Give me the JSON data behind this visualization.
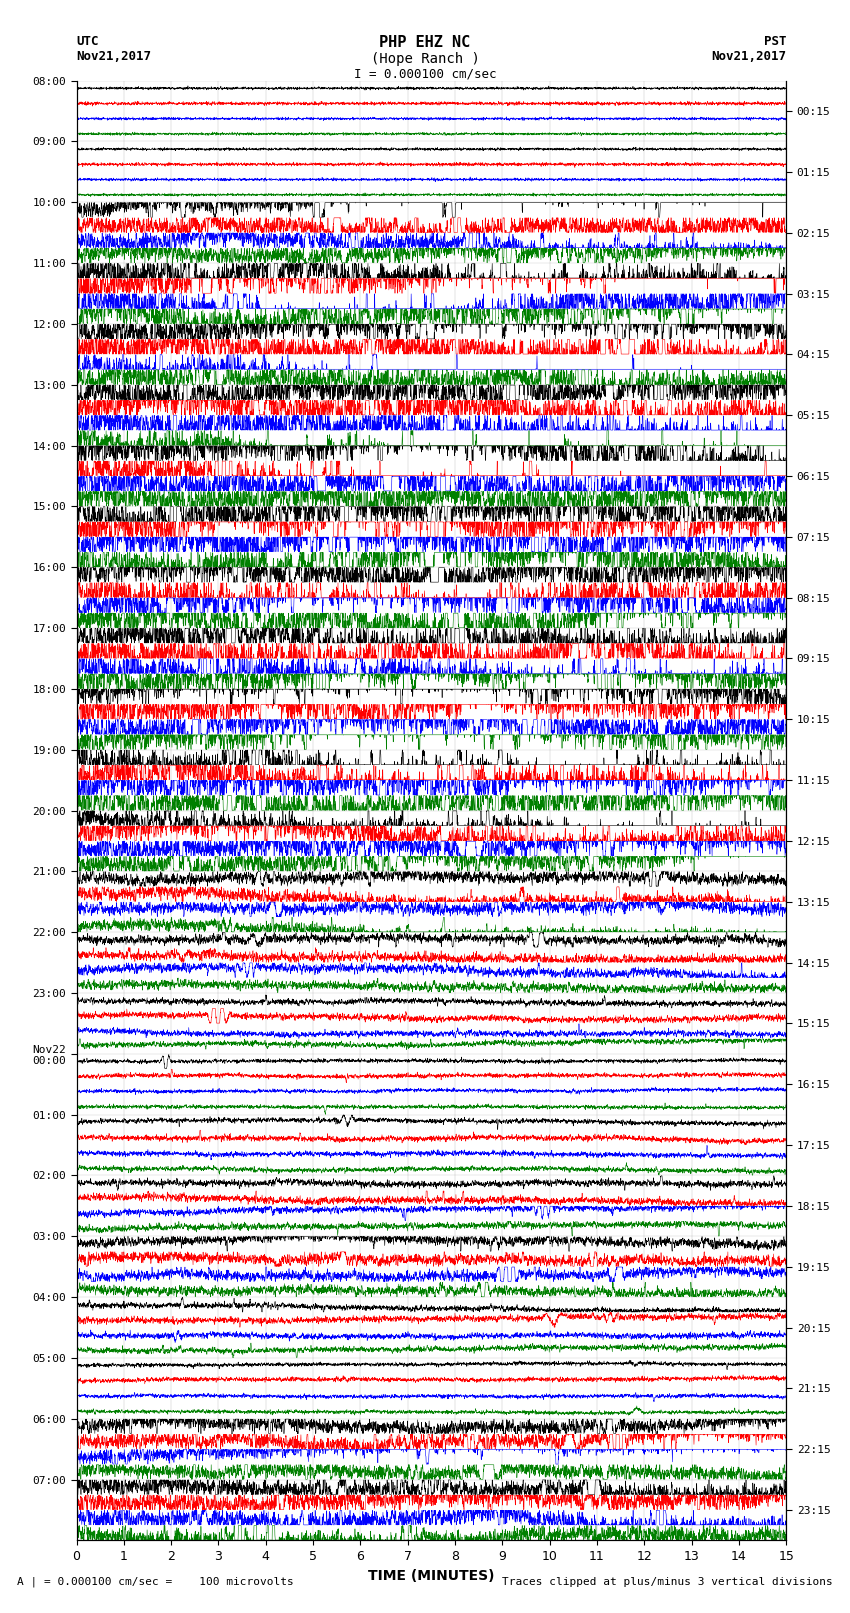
{
  "title_line1": "PHP EHZ NC",
  "title_line2": "(Hope Ranch )",
  "title_line3": "I = 0.000100 cm/sec",
  "utc_label_top": "UTC",
  "utc_label_date": "Nov21,2017",
  "pst_label_top": "PST",
  "pst_label_date": "Nov21,2017",
  "xlabel": "TIME (MINUTES)",
  "footer_left": "A | = 0.000100 cm/sec =    100 microvolts",
  "footer_right": "Traces clipped at plus/minus 3 vertical divisions",
  "left_times": [
    "08:00",
    "09:00",
    "10:00",
    "11:00",
    "12:00",
    "13:00",
    "14:00",
    "15:00",
    "16:00",
    "17:00",
    "18:00",
    "19:00",
    "20:00",
    "21:00",
    "22:00",
    "23:00",
    "Nov22\n00:00",
    "01:00",
    "02:00",
    "03:00",
    "04:00",
    "05:00",
    "06:00",
    "07:00"
  ],
  "right_times": [
    "00:15",
    "01:15",
    "02:15",
    "03:15",
    "04:15",
    "05:15",
    "06:15",
    "07:15",
    "08:15",
    "09:15",
    "10:15",
    "11:15",
    "12:15",
    "13:15",
    "14:15",
    "15:15",
    "16:15",
    "17:15",
    "18:15",
    "19:15",
    "20:15",
    "21:15",
    "22:15",
    "23:15"
  ],
  "n_traces": 24,
  "n_channels": 4,
  "colors": [
    "black",
    "red",
    "blue",
    "green"
  ],
  "activity_levels": [
    0.03,
    0.04,
    0.55,
    0.85,
    0.8,
    0.88,
    0.9,
    0.95,
    0.95,
    0.88,
    0.82,
    0.9,
    0.65,
    0.35,
    0.25,
    0.15,
    0.08,
    0.12,
    0.18,
    0.28,
    0.15,
    0.08,
    0.42,
    0.55
  ],
  "channel_base_noise": [
    0.04,
    0.05,
    0.04,
    0.04
  ],
  "channel_active_scale": [
    1.0,
    1.1,
    1.05,
    1.0
  ]
}
